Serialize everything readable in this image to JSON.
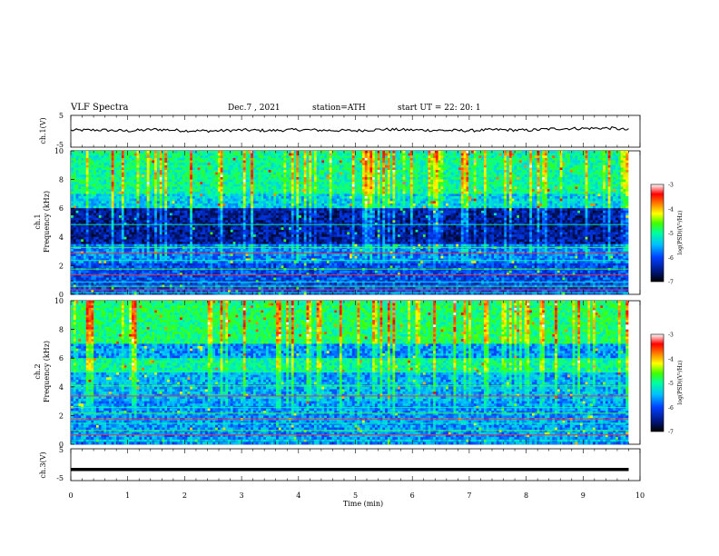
{
  "header": {
    "title": "VLF  Spectra",
    "date": "Dec.7  , 2021",
    "station": "station=ATH",
    "start": "start  UT  =   22: 20: 1"
  },
  "colors": {
    "colormap": [
      "#000000",
      "#001a8c",
      "#0040ff",
      "#00c0ff",
      "#00ffa0",
      "#40ff00",
      "#ffff00",
      "#ff8000",
      "#ff0000",
      "#ffffff"
    ]
  },
  "chart_data": [
    {
      "type": "line",
      "panel": "channel-1-voltage",
      "ylabel": "ch.1(V)",
      "ylim": [
        -5,
        5
      ],
      "ytick_labels": [
        "5",
        "-5"
      ],
      "xlim": [
        0,
        10
      ],
      "x": [
        0.0,
        0.5,
        1.0,
        1.5,
        2.0,
        2.5,
        3.0,
        3.5,
        4.0,
        4.5,
        5.0,
        5.5,
        6.0,
        6.5,
        7.0,
        7.5,
        8.0,
        8.5,
        9.0,
        9.5,
        9.8
      ],
      "values": [
        0.3,
        0.4,
        0.1,
        0.6,
        0.2,
        0.1,
        0.4,
        0.2,
        0.5,
        0.3,
        0.2,
        0.6,
        0.4,
        0.3,
        0.2,
        0.5,
        0.3,
        0.8,
        0.9,
        1.0,
        0.4
      ]
    },
    {
      "type": "heatmap",
      "panel": "channel-1-spectrogram",
      "ylabel": "ch.1\nFrequency  (kHz)",
      "ylim": [
        0,
        10
      ],
      "ytick_labels": [
        "10",
        "8",
        "6",
        "4",
        "2",
        "0"
      ],
      "xlim": [
        0,
        10
      ],
      "colorbar": {
        "label": "log(PSD)(V²/Hz)",
        "range": [
          -7,
          -3
        ],
        "tick_labels": [
          "-3",
          "-4",
          "-5",
          "-6",
          "-7"
        ]
      }
    },
    {
      "type": "heatmap",
      "panel": "channel-2-spectrogram",
      "ylabel": "ch.2\nFrequency  (kHz)",
      "ylim": [
        0,
        10
      ],
      "ytick_labels": [
        "10",
        "8",
        "6",
        "4",
        "2",
        "0"
      ],
      "xlim": [
        0,
        10
      ],
      "colorbar": {
        "label": "log(PSD)(V²/Hz)",
        "range": [
          -7,
          -3
        ],
        "tick_labels": [
          "-3",
          "-4",
          "-5",
          "-6",
          "-7"
        ]
      }
    },
    {
      "type": "line",
      "panel": "channel-3-voltage",
      "ylabel": "ch.3(V)",
      "ylim": [
        -5,
        5
      ],
      "ytick_labels": [
        "5",
        "-5"
      ],
      "xlim": [
        0,
        10
      ],
      "x": [
        0,
        9.8
      ],
      "values": [
        -1.5,
        -1.5
      ],
      "xlabel": "Time  (min)",
      "xtick_labels": [
        "0",
        "1",
        "2",
        "3",
        "4",
        "5",
        "6",
        "7",
        "8",
        "9",
        "10"
      ]
    }
  ]
}
